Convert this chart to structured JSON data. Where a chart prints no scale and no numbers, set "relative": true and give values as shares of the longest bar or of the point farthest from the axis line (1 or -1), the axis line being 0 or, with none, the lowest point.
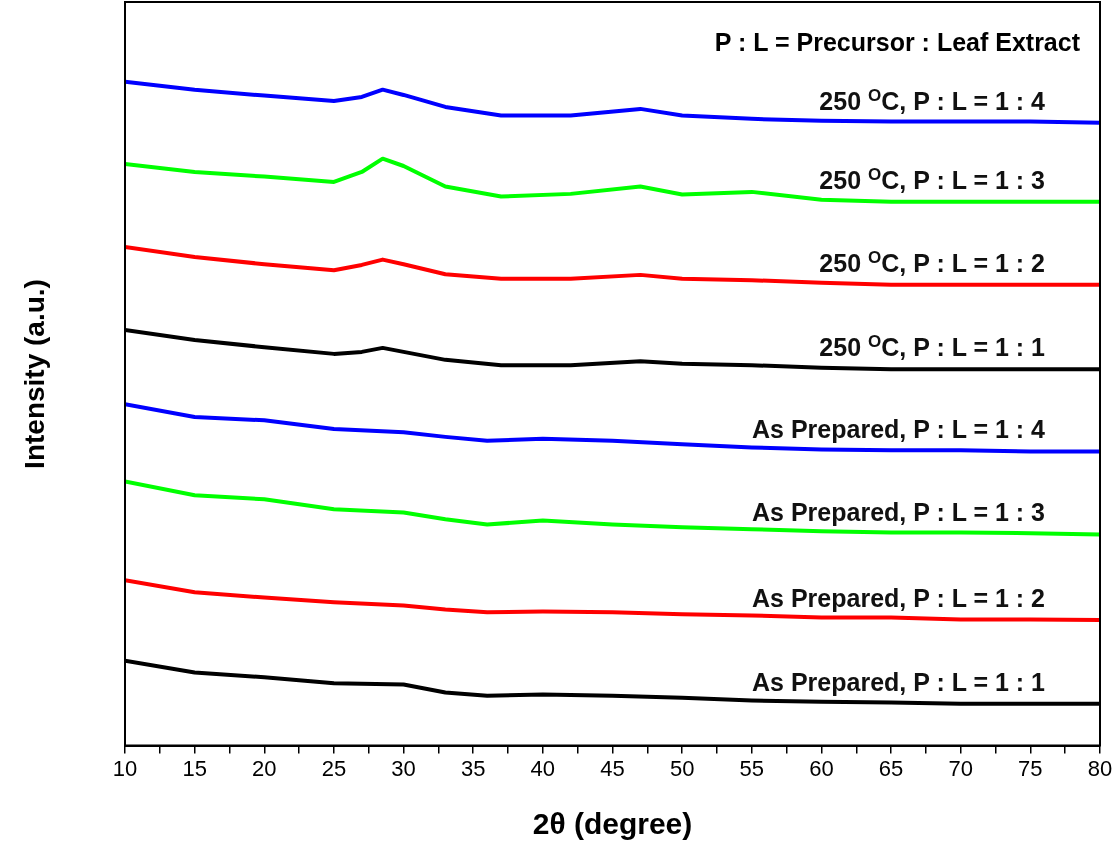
{
  "chart_data": {
    "type": "line",
    "relative": true,
    "xlabel": "2θ (degree)",
    "ylabel": "Intensity (a.u.)",
    "xlim": [
      10,
      80
    ],
    "xticks": [
      10,
      {
        "value": 12.5,
        "label": null
      },
      15,
      {
        "value": 17.5,
        "label": null
      },
      20,
      {
        "value": 22.5,
        "label": null
      },
      25,
      {
        "value": 27.5,
        "label": null
      },
      30,
      {
        "value": 32.5,
        "label": null
      },
      35,
      {
        "value": 37.5,
        "label": null
      },
      40,
      {
        "value": 42.5,
        "label": null
      },
      45,
      {
        "value": 47.5,
        "label": null
      },
      50,
      {
        "value": 52.5,
        "label": null
      },
      55,
      {
        "value": 57.5,
        "label": null
      },
      60,
      {
        "value": 62.5,
        "label": null
      },
      65,
      {
        "value": 67.5,
        "label": null
      },
      70,
      {
        "value": 72.5,
        "label": null
      },
      75,
      {
        "value": 77.5,
        "label": null
      },
      80
    ],
    "annotations": [
      "P : L = Precursor : Leaf Extract"
    ],
    "legend": false,
    "marker": "none",
    "line_style": "solid",
    "series": [
      {
        "name": "250 $^{O}$C, P : L = 1 : 4",
        "color": "#0000ff",
        "x": [
          10,
          15,
          20,
          25,
          27,
          28.5,
          30,
          33,
          37,
          42,
          47,
          50,
          55,
          60,
          65,
          70,
          75,
          80
        ],
        "values": [
          1.0,
          0.988,
          0.979,
          0.971,
          0.977,
          0.988,
          0.98,
          0.962,
          0.949,
          0.949,
          0.959,
          0.949,
          0.944,
          0.941,
          0.94,
          0.94,
          0.94,
          0.938
        ]
      },
      {
        "name": "250 $^{O}$C, P : L = 1 : 3",
        "color": "#00ff00",
        "x": [
          10,
          15,
          20,
          25,
          27,
          28.5,
          30,
          33,
          37,
          42,
          47,
          50,
          55,
          60,
          65,
          70,
          75,
          80
        ],
        "values": [
          0.876,
          0.864,
          0.857,
          0.849,
          0.864,
          0.884,
          0.873,
          0.842,
          0.827,
          0.831,
          0.842,
          0.83,
          0.834,
          0.822,
          0.819,
          0.819,
          0.819,
          0.819
        ]
      },
      {
        "name": "250 $^{O}$C, P : L = 1 : 2",
        "color": "#ff0000",
        "x": [
          10,
          15,
          20,
          25,
          27,
          28.5,
          30,
          33,
          37,
          42,
          47,
          50,
          55,
          60,
          65,
          70,
          75,
          80
        ],
        "values": [
          0.751,
          0.736,
          0.725,
          0.716,
          0.724,
          0.732,
          0.725,
          0.71,
          0.703,
          0.703,
          0.709,
          0.703,
          0.701,
          0.697,
          0.694,
          0.694,
          0.694,
          0.694
        ]
      },
      {
        "name": "250 $^{O}$C, P : L = 1 : 1",
        "color": "#000000",
        "x": [
          10,
          15,
          20,
          25,
          27,
          28.5,
          30,
          33,
          37,
          42,
          47,
          50,
          55,
          60,
          65,
          70,
          75,
          80
        ],
        "values": [
          0.626,
          0.611,
          0.6,
          0.59,
          0.593,
          0.599,
          0.593,
          0.581,
          0.573,
          0.573,
          0.579,
          0.575,
          0.573,
          0.569,
          0.567,
          0.567,
          0.567,
          0.567
        ]
      },
      {
        "name": "As Prepared, P : L = 1 : 4",
        "color": "#0000ff",
        "x": [
          10,
          15,
          20,
          25,
          30,
          33,
          36,
          40,
          45,
          50,
          55,
          60,
          65,
          70,
          75,
          80
        ],
        "values": [
          0.514,
          0.495,
          0.49,
          0.477,
          0.472,
          0.465,
          0.459,
          0.462,
          0.459,
          0.454,
          0.449,
          0.446,
          0.445,
          0.445,
          0.443,
          0.443
        ]
      },
      {
        "name": "As Prepared, P : L = 1 : 3",
        "color": "#00ff00",
        "x": [
          10,
          15,
          20,
          25,
          30,
          33,
          36,
          40,
          45,
          50,
          55,
          60,
          65,
          70,
          75,
          80
        ],
        "values": [
          0.398,
          0.377,
          0.371,
          0.356,
          0.351,
          0.341,
          0.333,
          0.339,
          0.333,
          0.329,
          0.326,
          0.323,
          0.321,
          0.321,
          0.32,
          0.318
        ]
      },
      {
        "name": "As Prepared, P : L = 1 : 2",
        "color": "#ff0000",
        "x": [
          10,
          15,
          20,
          25,
          30,
          33,
          36,
          40,
          45,
          50,
          55,
          60,
          65,
          70,
          75,
          80
        ],
        "values": [
          0.249,
          0.231,
          0.223,
          0.216,
          0.211,
          0.205,
          0.201,
          0.202,
          0.201,
          0.198,
          0.196,
          0.193,
          0.193,
          0.19,
          0.19,
          0.189
        ]
      },
      {
        "name": "As Prepared, P : L = 1 : 1",
        "color": "#000000",
        "x": [
          10,
          15,
          20,
          25,
          30,
          33,
          36,
          40,
          45,
          50,
          55,
          60,
          65,
          70,
          75,
          80
        ],
        "values": [
          0.128,
          0.11,
          0.103,
          0.094,
          0.092,
          0.08,
          0.075,
          0.077,
          0.075,
          0.072,
          0.068,
          0.066,
          0.065,
          0.063,
          0.063,
          0.063
        ]
      }
    ]
  }
}
